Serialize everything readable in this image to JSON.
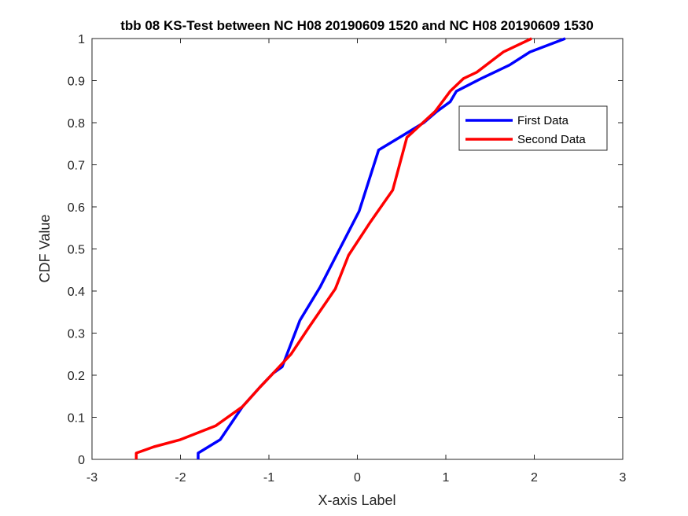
{
  "chart_data": {
    "type": "line",
    "title": "tbb 08 KS-Test between NC H08 20190609 1520 and NC H08 20190609 1530",
    "xlabel": "X-axis Label",
    "ylabel": "CDF Value",
    "xlim": [
      -3,
      3
    ],
    "ylim": [
      0,
      1
    ],
    "xticks": [
      "-3",
      "-2",
      "-1",
      "0",
      "1",
      "2",
      "3"
    ],
    "yticks": [
      "0",
      "0.1",
      "0.2",
      "0.3",
      "0.4",
      "0.5",
      "0.6",
      "0.7",
      "0.8",
      "0.9",
      "1"
    ],
    "grid": false,
    "legend_position": "top-right",
    "series": [
      {
        "name": "First Data",
        "color": "#0000ff",
        "points": [
          [
            -1.8,
            0.0
          ],
          [
            -1.8,
            0.015
          ],
          [
            -1.55,
            0.047
          ],
          [
            -1.3,
            0.125
          ],
          [
            -1.1,
            0.172
          ],
          [
            -0.95,
            0.205
          ],
          [
            -0.85,
            0.22
          ],
          [
            -0.65,
            0.33
          ],
          [
            -0.42,
            0.41
          ],
          [
            -0.2,
            0.5
          ],
          [
            0.02,
            0.59
          ],
          [
            0.24,
            0.735
          ],
          [
            0.5,
            0.768
          ],
          [
            0.75,
            0.8
          ],
          [
            0.9,
            0.827
          ],
          [
            1.05,
            0.85
          ],
          [
            1.12,
            0.875
          ],
          [
            1.4,
            0.905
          ],
          [
            1.72,
            0.937
          ],
          [
            1.95,
            0.968
          ],
          [
            2.35,
            1.0
          ]
        ]
      },
      {
        "name": "Second Data",
        "color": "#ff0000",
        "points": [
          [
            -2.5,
            0.0
          ],
          [
            -2.5,
            0.015
          ],
          [
            -2.3,
            0.03
          ],
          [
            -2.0,
            0.047
          ],
          [
            -1.6,
            0.08
          ],
          [
            -1.3,
            0.125
          ],
          [
            -1.1,
            0.172
          ],
          [
            -0.95,
            0.205
          ],
          [
            -0.75,
            0.25
          ],
          [
            -0.55,
            0.313
          ],
          [
            -0.25,
            0.405
          ],
          [
            -0.1,
            0.485
          ],
          [
            0.15,
            0.565
          ],
          [
            0.4,
            0.64
          ],
          [
            0.56,
            0.765
          ],
          [
            0.88,
            0.827
          ],
          [
            1.05,
            0.875
          ],
          [
            1.2,
            0.905
          ],
          [
            1.35,
            0.92
          ],
          [
            1.65,
            0.968
          ],
          [
            1.97,
            1.0
          ]
        ]
      }
    ]
  }
}
